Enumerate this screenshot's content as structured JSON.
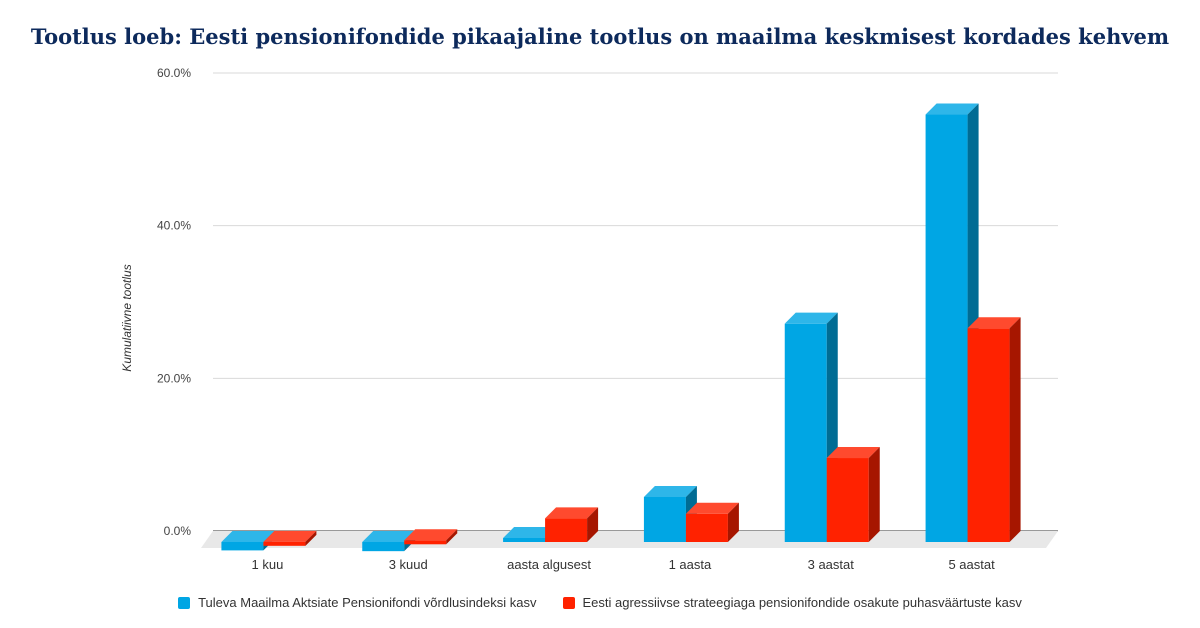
{
  "title": "Tootlus loeb: Eesti pensionifondide pikaajaline tootlus on maailma keskmisest kordades kehvem",
  "chart_data": {
    "type": "bar",
    "style": "3d",
    "ylabel": "Kumulatiivne tootlus",
    "ylim": [
      0,
      60
    ],
    "yticks": [
      0,
      20,
      40,
      60
    ],
    "ytick_labels": [
      "0.0%",
      "20.0%",
      "40.0%",
      "60.0%"
    ],
    "grid": true,
    "legend_position": "bottom",
    "categories": [
      "1 kuu",
      "3 kuud",
      "aasta algusest",
      "1 aasta",
      "3 aastat",
      "5 aastat"
    ],
    "series": [
      {
        "name": "Tuleva Maailma Aktsiate Pensionifondi võrdlusindeksi kasv",
        "color": "#00a6e4",
        "values": [
          -1.1,
          -1.2,
          0.4,
          5.9,
          28.6,
          56.0
        ]
      },
      {
        "name": "Eesti agressiivse strateegiaga pensionifondide osakute puhasväärtuste kasv",
        "color": "#ff2200",
        "values": [
          -0.5,
          -0.3,
          3.1,
          3.7,
          11.0,
          28.0
        ]
      }
    ]
  }
}
